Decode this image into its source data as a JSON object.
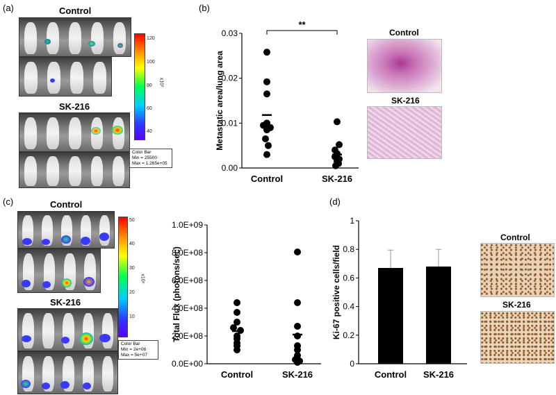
{
  "panels": {
    "a": {
      "label": "(a)",
      "group1_label": "Control",
      "group2_label": "SK-216",
      "colorbar": {
        "ticks": [
          "120",
          "100",
          "80",
          "60",
          "40"
        ],
        "unit": "x10³",
        "box_lines": [
          "Color Bar",
          "Min = 25500",
          "Max = 1.265e+05"
        ]
      }
    },
    "b": {
      "label": "(b)",
      "significance": "**",
      "histology_labels": [
        "Control",
        "SK-216"
      ]
    },
    "c": {
      "label": "(c)",
      "group1_label": "Control",
      "group2_label": "SK-216",
      "colorbar": {
        "ticks": [
          "50",
          "40",
          "30",
          "20",
          "10"
        ],
        "unit": "x10⁶",
        "box_lines": [
          "Color Bar",
          "Min = 2e+06",
          "Max = 5e+07"
        ]
      }
    },
    "d": {
      "label": "(d)",
      "ihc_labels": [
        "Control",
        "SK-216"
      ]
    }
  },
  "colors": {
    "bar_fill": "#000000",
    "error_bar": "#999999",
    "histo_control": "#c873b6",
    "histo_sk216": "#e8c9e0",
    "ihc_bg": "#e6d2b8",
    "ihc_nuclei": "#8a4f1e"
  },
  "chart_data": [
    {
      "id": "b",
      "type": "scatter",
      "title": "",
      "xlabel": "",
      "ylabel": "Metastatic area/lung area",
      "categories": [
        "Control",
        "SK-216"
      ],
      "yticks": [
        "0.00",
        "0.01",
        "0.02",
        "0.03"
      ],
      "ylim": [
        0,
        0.03
      ],
      "series": [
        {
          "category": "Control",
          "values": [
            0.0258,
            0.0192,
            0.0165,
            0.01,
            0.0095,
            0.009,
            0.0085,
            0.0065,
            0.005,
            0.003
          ],
          "mean": 0.0118
        },
        {
          "category": "SK-216",
          "values": [
            0.0103,
            0.0052,
            0.004,
            0.0032,
            0.0025,
            0.002,
            0.0015,
            0.001,
            0.0005
          ],
          "mean": 0.003
        }
      ],
      "annotation": "**",
      "grid": false
    },
    {
      "id": "c",
      "type": "scatter",
      "title": "",
      "xlabel": "",
      "ylabel": "Total Flux (photons/sec)",
      "categories": [
        "Control",
        "SK-216"
      ],
      "yticks": [
        "0.0E+00",
        "2.0E+08",
        "4.0E+08",
        "6.0E+08",
        "8.0E+08",
        "1.0E+09"
      ],
      "ylim": [
        0,
        1000000000
      ],
      "series": [
        {
          "category": "Control",
          "values": [
            440000000,
            370000000,
            300000000,
            260000000,
            240000000,
            200000000,
            180000000,
            150000000,
            130000000,
            100000000
          ],
          "mean": 235000000
        },
        {
          "category": "SK-216",
          "values": [
            805000000,
            440000000,
            270000000,
            200000000,
            130000000,
            100000000,
            60000000,
            30000000,
            20000000,
            10000000
          ],
          "mean": 210000000
        }
      ],
      "grid": false
    },
    {
      "id": "d",
      "type": "bar",
      "title": "",
      "xlabel": "",
      "ylabel": "Ki-67 positive cells/field",
      "categories": [
        "Control",
        "SK-216"
      ],
      "yticks": [
        "0",
        "0.2",
        "0.4",
        "0.6",
        "0.8",
        "1"
      ],
      "values": [
        0.67,
        0.68
      ],
      "errors": [
        0.125,
        0.12
      ],
      "ylim": [
        0,
        1
      ],
      "grid": false
    }
  ]
}
